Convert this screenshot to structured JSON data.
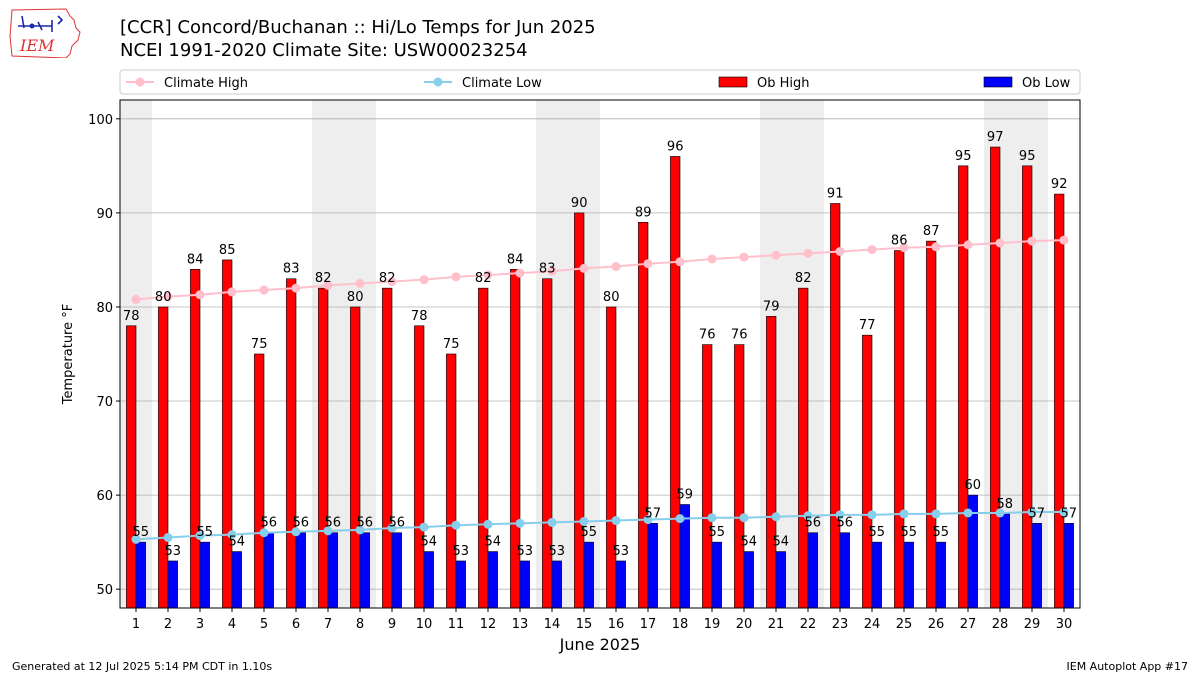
{
  "header": {
    "title_line1": "[CCR] Concord/Buchanan :: Hi/Lo Temps for Jun 2025",
    "title_line2": "NCEI 1991-2020 Climate Site: USW00023254"
  },
  "logo": {
    "text": "IEM",
    "icon": "iem-iowa-logo"
  },
  "footer": {
    "generated": "Generated at 12 Jul 2025 5:14 PM CDT in 1.10s",
    "app": "IEM Autoplot App #17"
  },
  "colors": {
    "ob_high": "#ff0000",
    "ob_low": "#0000ff",
    "climate_high": "#ffc0cb",
    "climate_low": "#87ceeb",
    "weekend_shade": "#eeeeee",
    "grid": "#b0b0b0"
  },
  "chart_data": {
    "type": "bar",
    "title": "[CCR] Concord/Buchanan :: Hi/Lo Temps for Jun 2025",
    "subtitle": "NCEI 1991-2020 Climate Site: USW00023254",
    "xlabel": "June 2025",
    "ylabel": "Temperature $^\\circ$F",
    "ylim": [
      48,
      102
    ],
    "yticks": [
      50,
      60,
      70,
      80,
      90,
      100
    ],
    "grid": true,
    "legend_placement": "top",
    "categories": [
      "1",
      "2",
      "3",
      "4",
      "5",
      "6",
      "7",
      "8",
      "9",
      "10",
      "11",
      "12",
      "13",
      "14",
      "15",
      "16",
      "17",
      "18",
      "19",
      "20",
      "21",
      "22",
      "23",
      "24",
      "25",
      "26",
      "27",
      "28",
      "29",
      "30"
    ],
    "shaded_days": [
      1,
      7,
      8,
      14,
      15,
      21,
      22,
      28,
      29
    ],
    "series": [
      {
        "name": "Ob High",
        "kind": "bar",
        "values": [
          78,
          80,
          84,
          85,
          75,
          83,
          82,
          80,
          82,
          78,
          75,
          82,
          84,
          83,
          90,
          80,
          89,
          96,
          76,
          76,
          79,
          82,
          91,
          77,
          86,
          87,
          95,
          97,
          95,
          92
        ]
      },
      {
        "name": "Ob Low",
        "kind": "bar",
        "values": [
          55,
          53,
          55,
          54,
          56,
          56,
          56,
          56,
          56,
          54,
          53,
          54,
          53,
          53,
          55,
          53,
          57,
          59,
          55,
          54,
          54,
          56,
          56,
          55,
          55,
          55,
          60,
          58,
          57,
          57
        ]
      },
      {
        "name": "Climate High",
        "kind": "line",
        "values": [
          80.8,
          81.1,
          81.3,
          81.6,
          81.8,
          82.0,
          82.3,
          82.5,
          82.7,
          82.9,
          83.2,
          83.4,
          83.6,
          83.8,
          84.1,
          84.3,
          84.6,
          84.8,
          85.1,
          85.3,
          85.5,
          85.7,
          85.9,
          86.1,
          86.3,
          86.4,
          86.6,
          86.8,
          87.0,
          87.1
        ]
      },
      {
        "name": "Climate Low",
        "kind": "line",
        "values": [
          55.3,
          55.5,
          55.7,
          55.8,
          56.0,
          56.1,
          56.2,
          56.3,
          56.5,
          56.6,
          56.8,
          56.9,
          57.0,
          57.1,
          57.2,
          57.3,
          57.4,
          57.5,
          57.6,
          57.6,
          57.7,
          57.8,
          57.9,
          57.9,
          58.0,
          58.0,
          58.1,
          58.1,
          58.2,
          58.2
        ]
      }
    ]
  }
}
